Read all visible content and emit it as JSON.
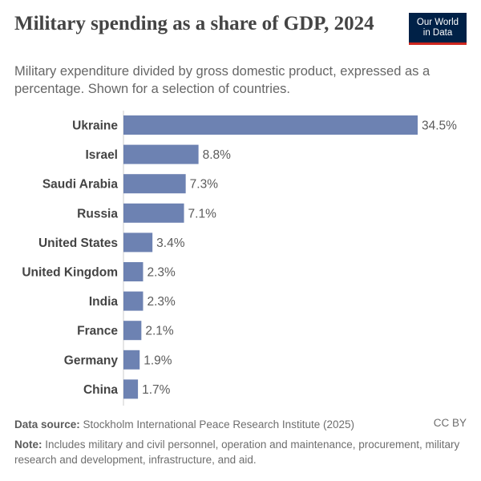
{
  "header": {
    "title": "Military spending as a share of GDP, 2024",
    "subtitle": "Military expenditure divided by gross domestic product, expressed as a percentage. Shown for a selection of countries."
  },
  "logo": {
    "line1": "Our World",
    "line2": "in Data"
  },
  "footer": {
    "source_label": "Data source:",
    "source_text": "Stockholm International Peace Research Institute (2025)",
    "license": "CC BY",
    "note_label": "Note:",
    "note_text": "Includes military and civil personnel, operation and maintenance, procurement, military research and development, infrastructure, and aid."
  },
  "colors": {
    "bar": "#6d82b2",
    "brand": "#002147",
    "brand_accent": "#ce261e"
  },
  "chart_data": {
    "type": "bar",
    "orientation": "horizontal",
    "title": "Military spending as a share of GDP, 2024",
    "unit": "%",
    "categories": [
      "Ukraine",
      "Israel",
      "Saudi Arabia",
      "Russia",
      "United States",
      "United Kingdom",
      "India",
      "France",
      "Germany",
      "China"
    ],
    "values": [
      34.5,
      8.8,
      7.3,
      7.1,
      3.4,
      2.3,
      2.3,
      2.1,
      1.9,
      1.7
    ],
    "labels": [
      "34.5%",
      "8.8%",
      "7.3%",
      "7.1%",
      "3.4%",
      "2.3%",
      "2.3%",
      "2.1%",
      "1.9%",
      "1.7%"
    ],
    "xlim": [
      0,
      34.5
    ]
  }
}
